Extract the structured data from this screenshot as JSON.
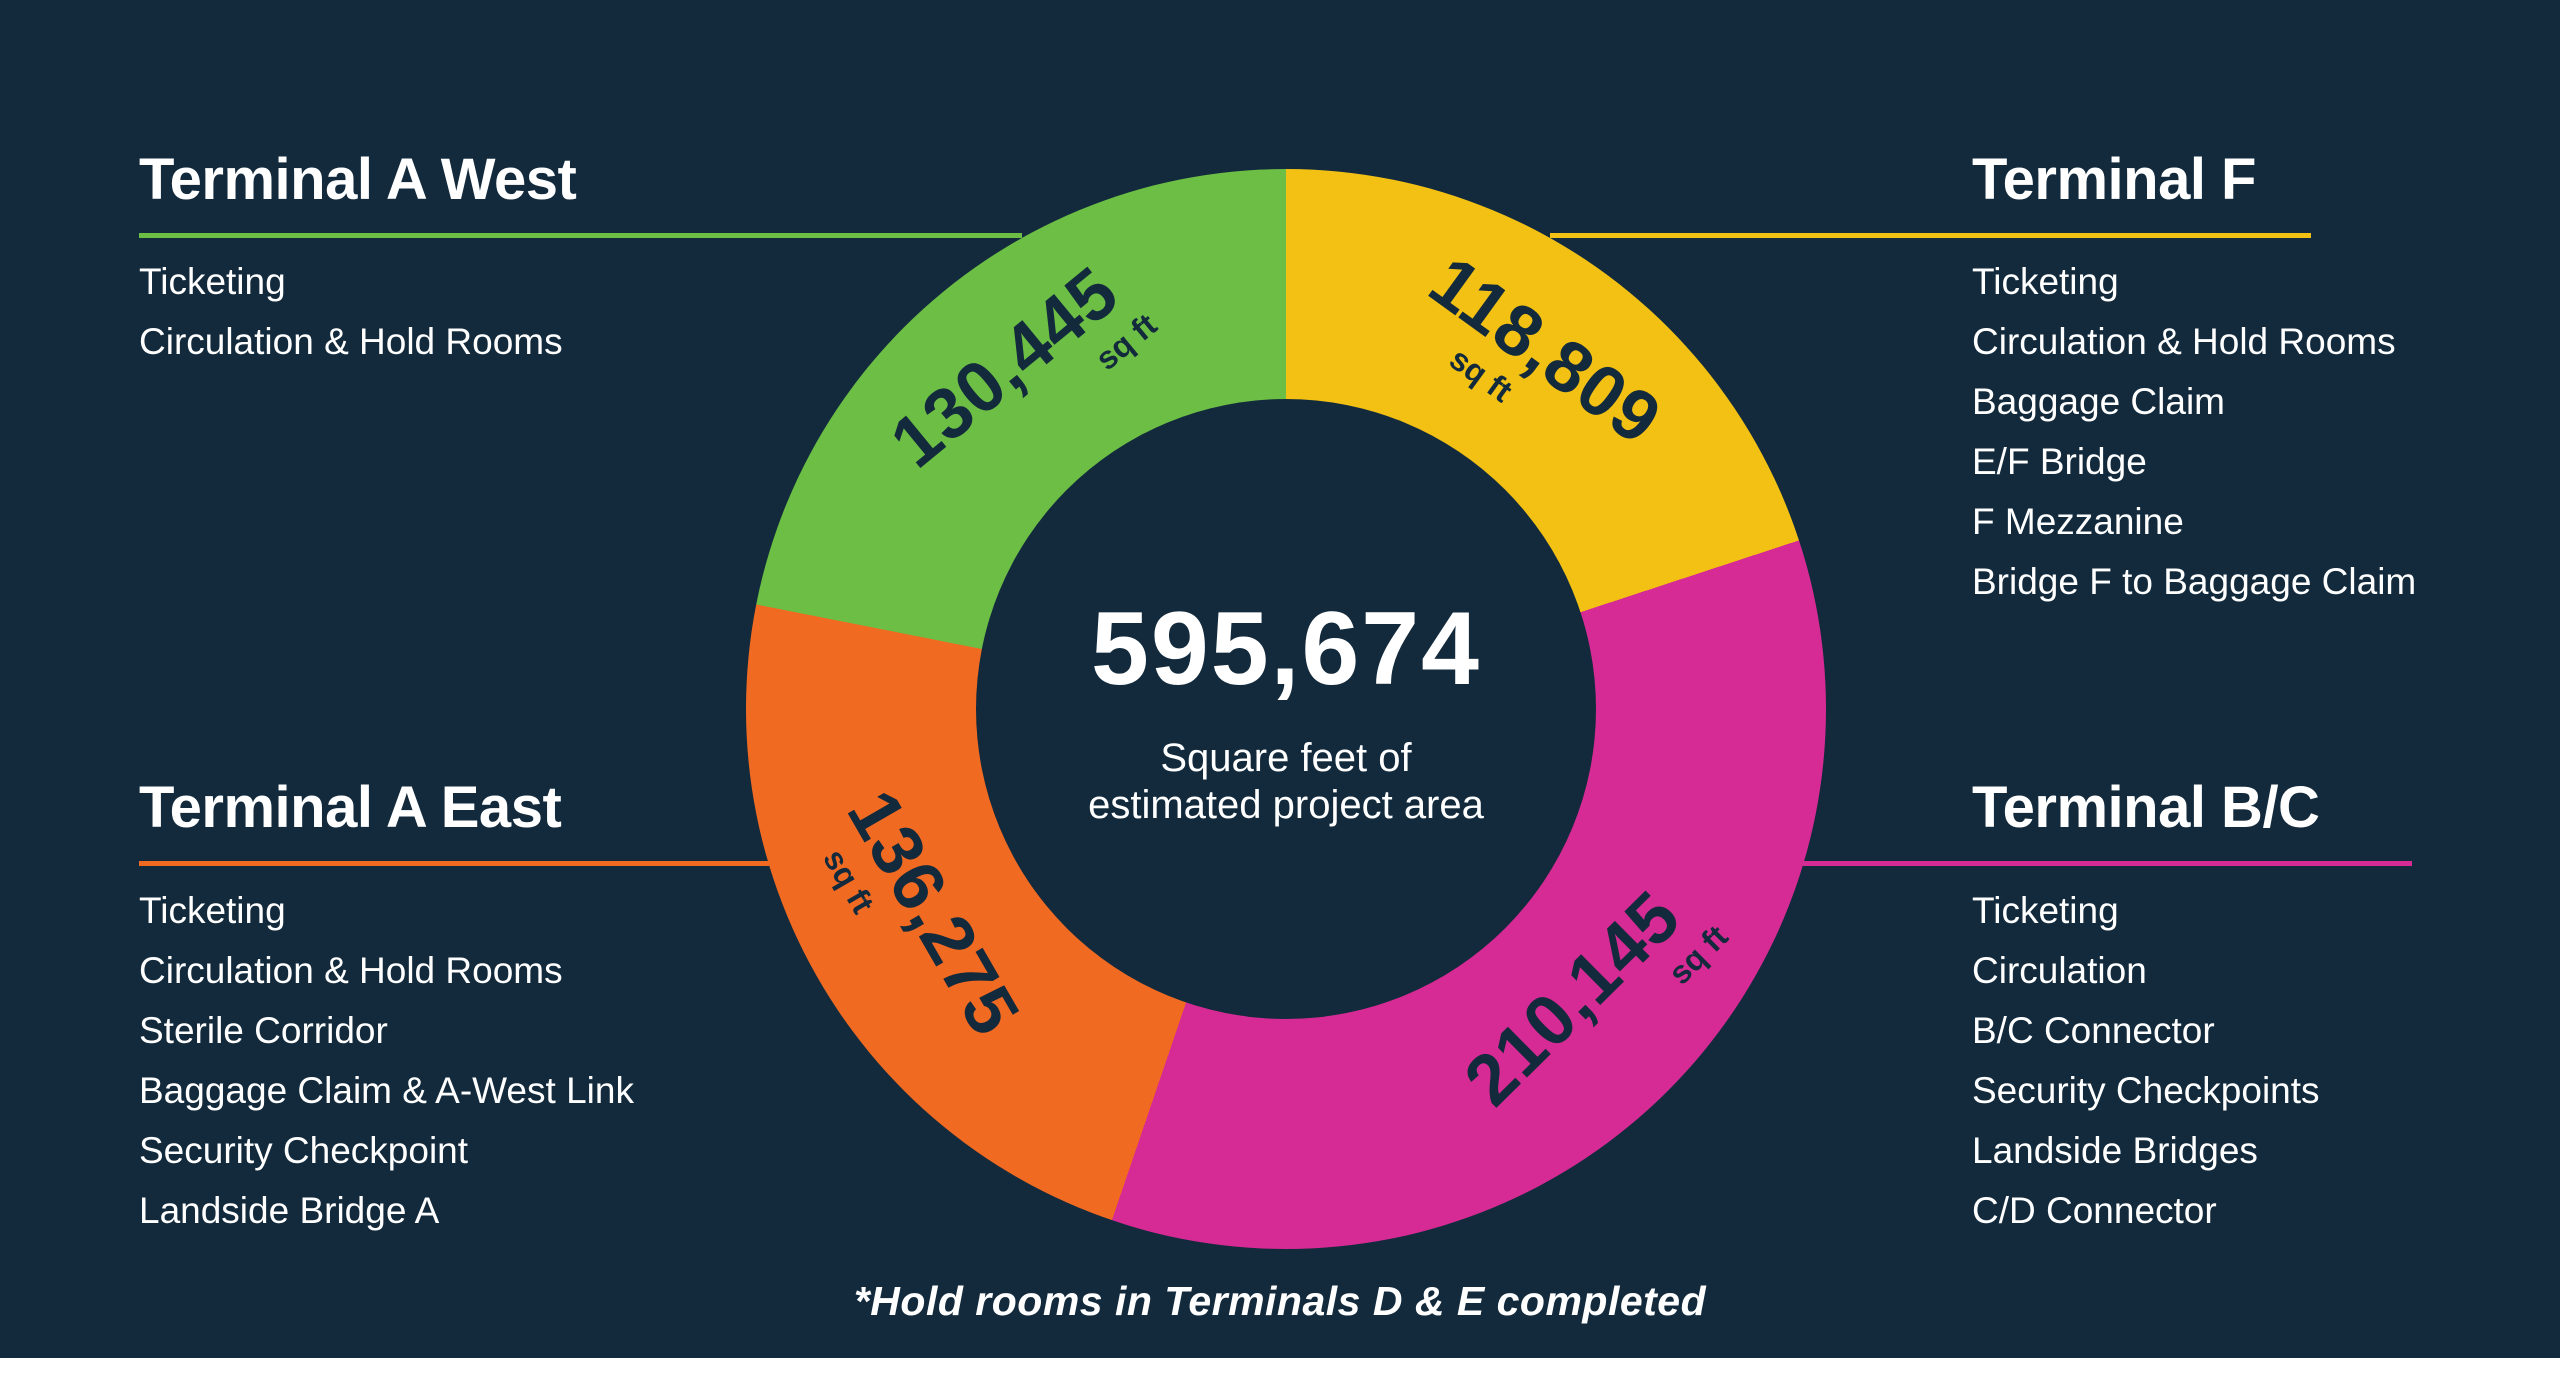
{
  "background_color": "#122A3C",
  "panels": [
    {
      "id": "terminal-a-west",
      "title": "Terminal A West",
      "accent": "#6CBE45",
      "items": [
        "Ticketing",
        "Circulation & Hold Rooms"
      ]
    },
    {
      "id": "terminal-f",
      "title": "Terminal F",
      "accent": "#F2C114",
      "items": [
        "Ticketing",
        "Circulation & Hold Rooms",
        "Baggage Claim",
        "E/F Bridge",
        "F Mezzanine",
        "Bridge F to Baggage Claim"
      ]
    },
    {
      "id": "terminal-a-east",
      "title": "Terminal A East",
      "accent": "#F16A22",
      "items": [
        "Ticketing",
        "Circulation & Hold Rooms",
        "Sterile Corridor",
        "Baggage Claim & A-West Link",
        "Security Checkpoint",
        "Landside Bridge A"
      ]
    },
    {
      "id": "terminal-b-c",
      "title": "Terminal B/C",
      "accent": "#D62A94",
      "items": [
        "Ticketing",
        "Circulation",
        "B/C Connector",
        "Security Checkpoints",
        "Landside Bridges",
        "C/D Connector"
      ]
    }
  ],
  "chart_data": {
    "type": "pie",
    "variant": "donut",
    "start_angle_deg": 0,
    "total_value": 595674,
    "segments": [
      {
        "name": "Terminal F",
        "label": "118,809",
        "value": 118809,
        "unit": "sq ft",
        "color": "#F2C114"
      },
      {
        "name": "Terminal B/C",
        "label": "210,145",
        "value": 210145,
        "unit": "sq ft",
        "color": "#D62A94"
      },
      {
        "name": "Terminal A East",
        "label": "136,275",
        "value": 136275,
        "unit": "sq ft",
        "color": "#F16A22"
      },
      {
        "name": "Terminal A West",
        "label": "130,445",
        "value": 130445,
        "unit": "sq ft",
        "color": "#6CBE45"
      }
    ],
    "center": {
      "total": "595,674",
      "caption_line1": "Square feet of",
      "caption_line2": "estimated project area"
    }
  },
  "footnote": "*Hold rooms in Terminals D & E completed"
}
